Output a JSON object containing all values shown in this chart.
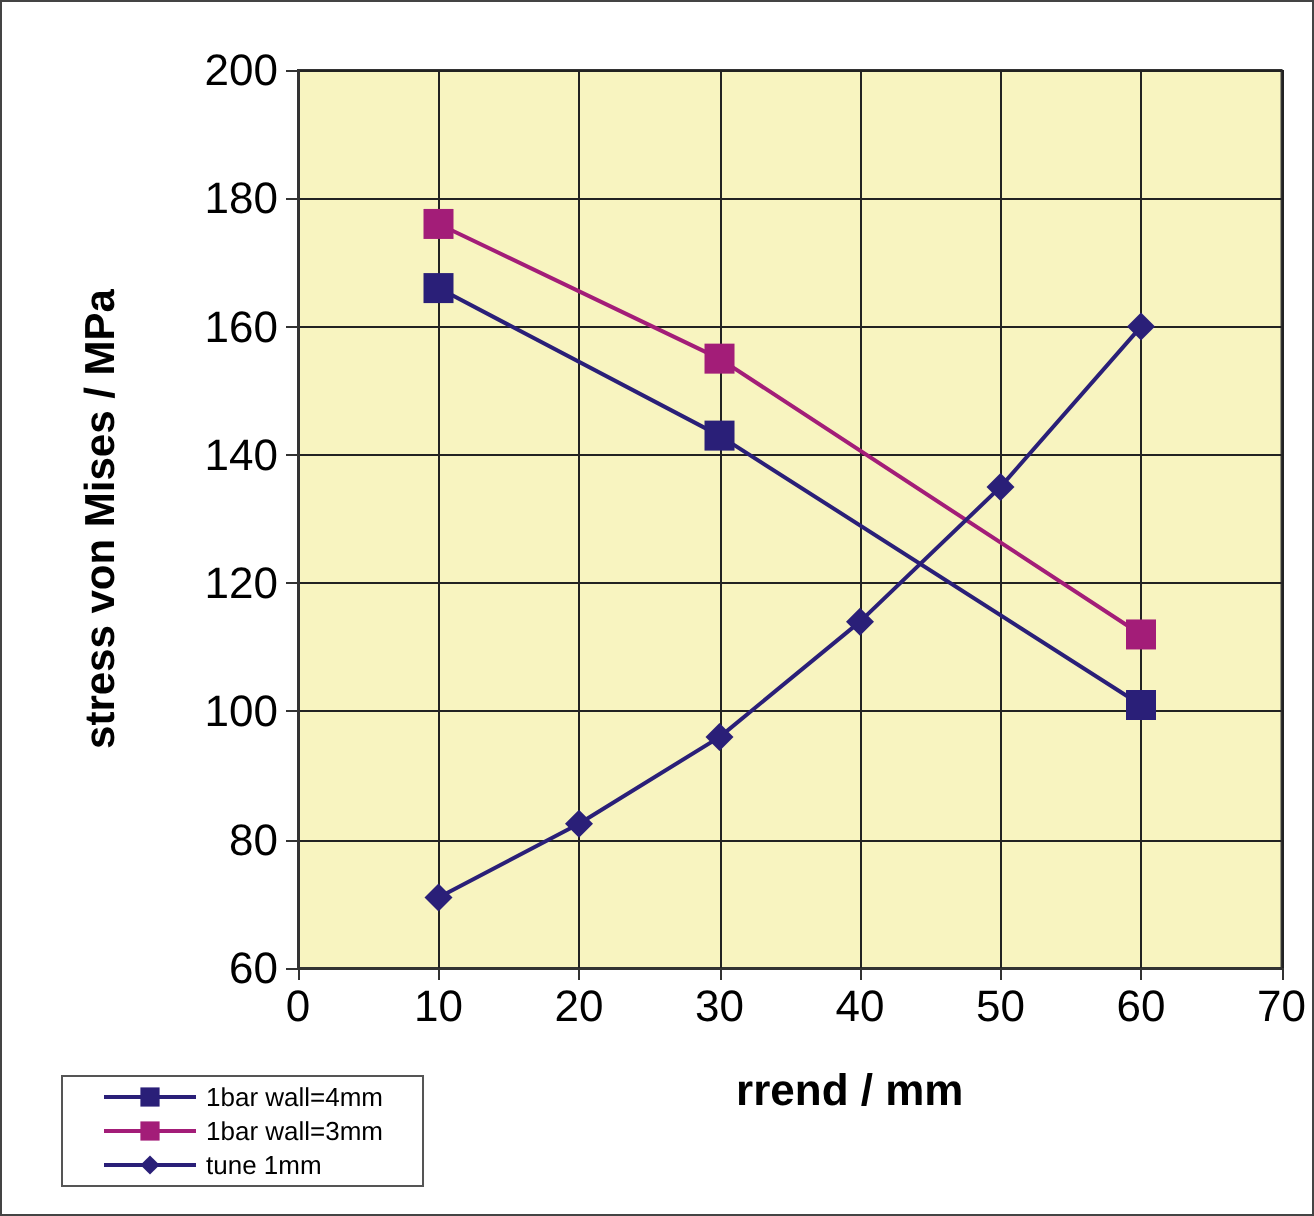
{
  "chart_data": {
    "type": "line",
    "xlabel": "rrend / mm",
    "ylabel": "stress von Mises / MPa",
    "xlim": [
      0,
      70
    ],
    "xticks": [
      0,
      10,
      20,
      30,
      40,
      50,
      60,
      70
    ],
    "ylim": [
      60,
      200
    ],
    "yticks": [
      60,
      80,
      100,
      120,
      140,
      160,
      180,
      200
    ],
    "grid": true,
    "legend": "bottom left",
    "series": [
      {
        "name": "1bar wall=4mm",
        "color": "#2a1f78",
        "marker": "square",
        "x": [
          10,
          30,
          60
        ],
        "values": [
          166,
          143,
          101
        ]
      },
      {
        "name": "1bar wall=3mm",
        "color": "#a31d78",
        "marker": "square",
        "x": [
          10,
          30,
          60
        ],
        "values": [
          176,
          155,
          112
        ]
      },
      {
        "name": "tune 1mm",
        "color": "#2a1f78",
        "marker": "diamond",
        "x": [
          10,
          20,
          30,
          40,
          50,
          60
        ],
        "values": [
          71,
          82.5,
          96,
          114,
          135,
          160
        ]
      }
    ]
  }
}
